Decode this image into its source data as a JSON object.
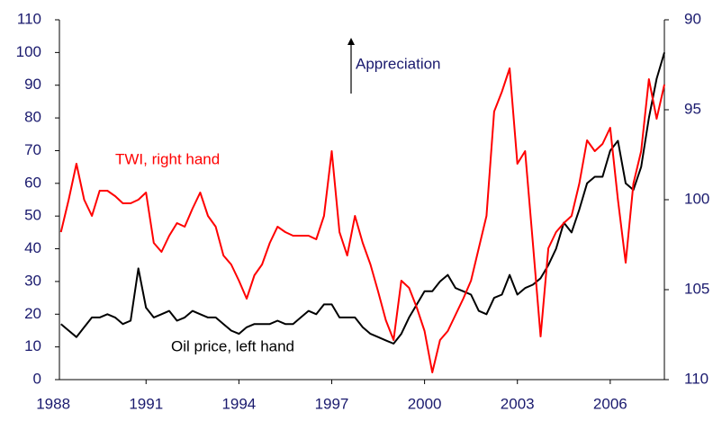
{
  "chart_data": {
    "type": "line",
    "annotations": [
      "TWI, right hand",
      "Oil price, left hand",
      "Appreciation"
    ],
    "x": [
      1988.25,
      1988.5,
      1988.75,
      1989,
      1989.25,
      1989.5,
      1989.75,
      1990,
      1990.25,
      1990.5,
      1990.75,
      1991,
      1991.25,
      1991.5,
      1991.75,
      1992,
      1992.25,
      1992.5,
      1992.75,
      1993,
      1993.25,
      1993.5,
      1993.75,
      1994,
      1994.25,
      1994.5,
      1994.75,
      1995,
      1995.25,
      1995.5,
      1995.75,
      1996,
      1996.25,
      1996.5,
      1996.75,
      1997,
      1997.25,
      1997.5,
      1997.75,
      1998,
      1998.25,
      1998.5,
      1998.75,
      1999,
      1999.25,
      1999.5,
      1999.75,
      2000,
      2000.25,
      2000.5,
      2000.75,
      2001,
      2001.25,
      2001.5,
      2001.75,
      2002,
      2002.25,
      2002.5,
      2002.75,
      2003,
      2003.25,
      2003.5,
      2003.75,
      2004,
      2004.25,
      2004.5,
      2004.75,
      2005,
      2005.25,
      2005.5,
      2005.75,
      2006,
      2006.25,
      2006.5,
      2006.75,
      2007,
      2007.25,
      2007.5,
      2007.75
    ],
    "series": [
      {
        "name": "Oil price, left hand",
        "color": "#000000",
        "axis": "y",
        "values": [
          17,
          15,
          13,
          16,
          19,
          19,
          20,
          19,
          17,
          18,
          34,
          22,
          19,
          20,
          21,
          18,
          19,
          21,
          20,
          19,
          19,
          17,
          15,
          14,
          16,
          17,
          17,
          17,
          18,
          17,
          17,
          19,
          21,
          20,
          23,
          23,
          19,
          19,
          19,
          16,
          14,
          13,
          12,
          11,
          14,
          19,
          23,
          27,
          27,
          30,
          32,
          28,
          27,
          26,
          21,
          20,
          25,
          26,
          32,
          26,
          28,
          29,
          31,
          35,
          40,
          48,
          45,
          52,
          60,
          62,
          62,
          70,
          73,
          60,
          58,
          65,
          80,
          92,
          100
        ]
      },
      {
        "name": "TWI, right hand",
        "color": "#ff0000",
        "axis": "y2",
        "values": [
          101.8,
          100,
          98,
          100,
          100.9,
          99.5,
          99.5,
          99.8,
          100.2,
          100.2,
          100,
          99.6,
          102.4,
          102.9,
          102,
          101.3,
          101.5,
          100.5,
          99.6,
          100.9,
          101.5,
          103.1,
          103.6,
          104.5,
          105.5,
          104.2,
          103.6,
          102.4,
          101.5,
          101.8,
          102,
          102,
          102,
          102.2,
          100.9,
          97.3,
          101.8,
          103.1,
          100.9,
          102.4,
          103.6,
          105.1,
          106.7,
          107.8,
          104.5,
          104.9,
          106,
          107.3,
          109.6,
          107.8,
          107.3,
          106.4,
          105.5,
          104.5,
          102.7,
          100.9,
          95.1,
          94,
          92.7,
          98,
          97.3,
          102.4,
          107.6,
          102.7,
          101.8,
          101.3,
          100.9,
          99.1,
          96.7,
          97.3,
          96.9,
          96,
          100,
          103.5,
          99.1,
          97.3,
          93.3,
          95.5,
          93.6
        ]
      }
    ],
    "xlim": [
      1988.2,
      2007.75
    ],
    "xticks": [
      1988,
      1991,
      1994,
      1997,
      2000,
      2003,
      2006
    ],
    "ylim": [
      0,
      110
    ],
    "yticks": [
      0,
      10,
      20,
      30,
      40,
      50,
      60,
      70,
      80,
      90,
      100,
      110
    ],
    "y2lim": [
      110,
      90
    ],
    "y2ticks": [
      90,
      95,
      100,
      105,
      110
    ],
    "grid": false
  }
}
